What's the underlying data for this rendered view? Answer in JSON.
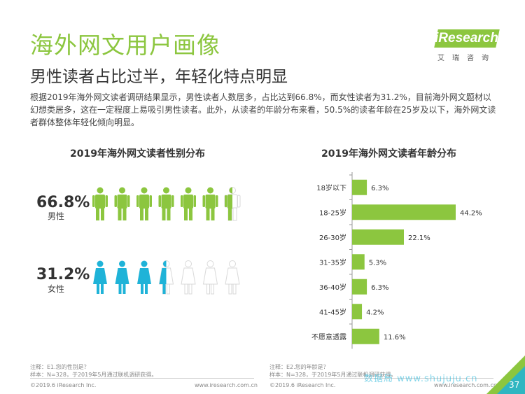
{
  "header": {
    "title": "海外网文用户画像",
    "subtitle": "男性读者占比过半，年轻化特点明显",
    "logo_text": "iResearch",
    "logo_sub": "艾瑞咨询"
  },
  "description": "根据2019年海外网文读者调研结果显示，男性读者人数居多，占比达到66.8%，而女性读者为31.2%，目前海外网文题材以幻想类居多，这在一定程度上易吸引男性读者。此外，从读者的年龄分布来看，50.5%的读者年龄在25岁及以下，海外网文读者群体整体年轻化倾向明显。",
  "colors": {
    "accent": "#8cc63f",
    "male": "#8cc63f",
    "female": "#1fb3d8",
    "empty": "#d9d9d9"
  },
  "chart_data": [
    {
      "type": "pictogram",
      "title": "2019年海外网文读者性别分布",
      "series": [
        {
          "name": "男性",
          "value": 66.8,
          "display": "66.8%",
          "icons_total": 7,
          "icons_filled": 6.5,
          "color": "#8cc63f"
        },
        {
          "name": "女性",
          "value": 31.2,
          "display": "31.2%",
          "icons_total": 7,
          "icons_filled": 3.5,
          "color": "#1fb3d8"
        }
      ]
    },
    {
      "type": "bar",
      "orientation": "horizontal",
      "title": "2019年海外网文读者年龄分布",
      "categories": [
        "18岁以下",
        "18-25岁",
        "26-30岁",
        "31-35岁",
        "36-40岁",
        "41-45岁",
        "不愿意透露"
      ],
      "values": [
        6.3,
        44.2,
        22.1,
        5.3,
        6.3,
        4.2,
        11.6
      ],
      "labels": [
        "6.3%",
        "44.2%",
        "22.1%",
        "5.3%",
        "6.3%",
        "4.2%",
        "11.6%"
      ],
      "unit": "%",
      "color": "#8cc63f"
    }
  ],
  "footer": {
    "left_note": "注释：E1.您的性别是？",
    "left_sample": "样本：N=328，于2019年5月通过联机调研获得。",
    "left_copy": "©2019.6 iResearch Inc.",
    "left_url": "www.iresearch.com.cn",
    "right_note": "注释：E2.您的年龄是？",
    "right_sample": "样本：N=328，于2019年5月通过联机调研获得。",
    "right_copy": "©2019.6 iResearch Inc.",
    "right_url": "www.iresearch.com.cn",
    "page": "37",
    "watermark": "数据局 www.shujuju.cn"
  }
}
